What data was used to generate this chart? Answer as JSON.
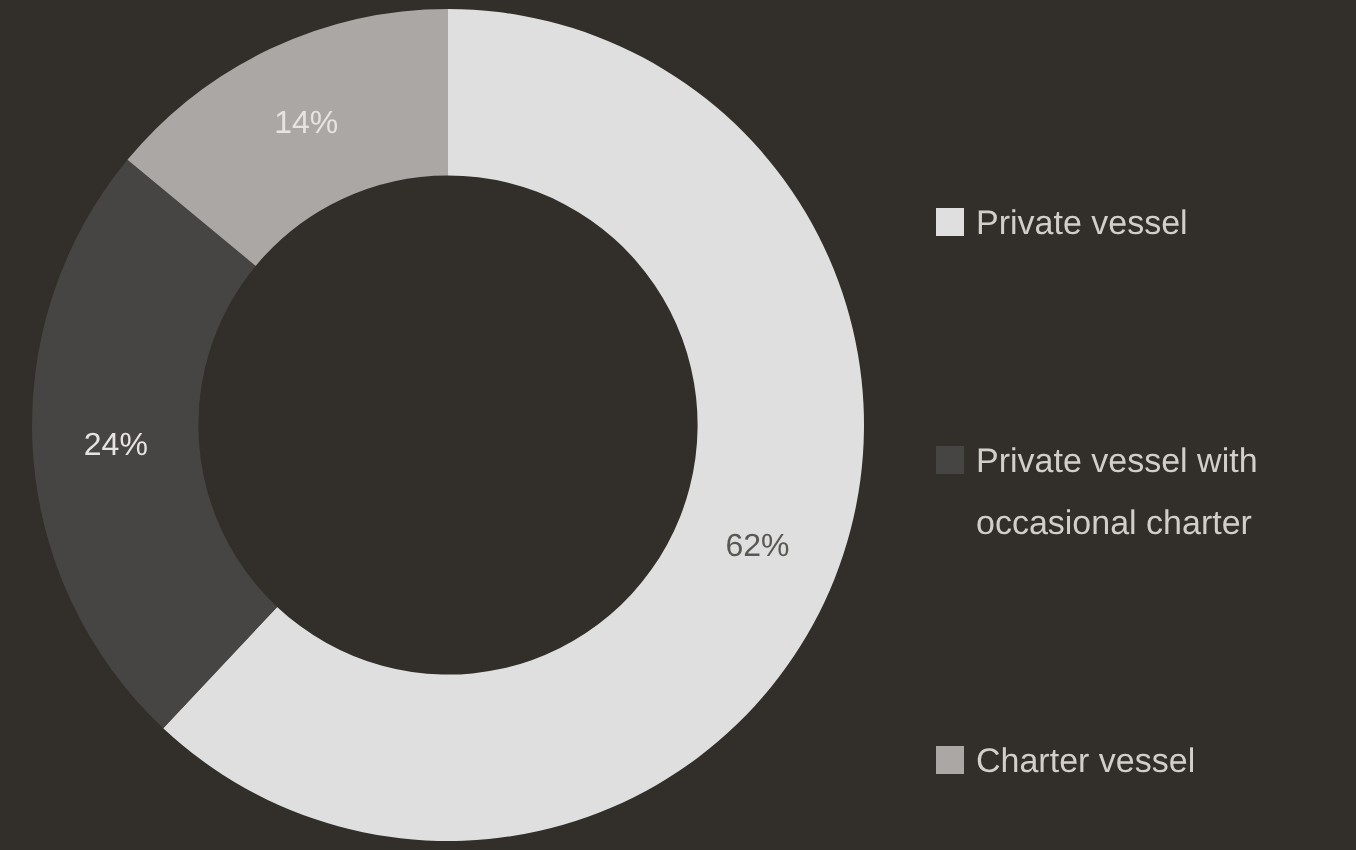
{
  "chart_data": {
    "type": "donut",
    "categories": [
      "Private vessel",
      "Private vessel with occasional charter",
      "Charter vessel"
    ],
    "values": [
      62,
      24,
      14
    ],
    "colors": [
      "#dfdfdf",
      "#474543",
      "#aba7a5"
    ],
    "value_labels": [
      "62%",
      "24%",
      "14%"
    ],
    "legend": "right"
  }
}
